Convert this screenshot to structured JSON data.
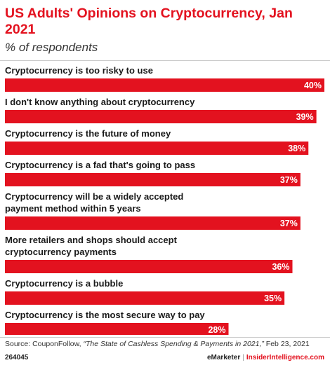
{
  "header": {
    "title": "US Adults' Opinions on Cryptocurrency, Jan 2021",
    "subtitle": "% of respondents"
  },
  "chart_data": {
    "type": "bar",
    "orientation": "horizontal",
    "categories": [
      [
        "Cryptocurrency is too risky to use"
      ],
      [
        "I don't know anything about cryptocurrency"
      ],
      [
        "Cryptocurrency is the future of money"
      ],
      [
        "Cryptocurrency is a fad that's going to pass"
      ],
      [
        "Cryptocurrency will be a widely accepted",
        "payment method within 5 years"
      ],
      [
        "More retailers and shops should accept",
        "cryptocurrency payments"
      ],
      [
        "Cryptocurrency is a bubble"
      ],
      [
        "Cryptocurrency is the most secure way to pay"
      ]
    ],
    "values": [
      40,
      39,
      38,
      37,
      37,
      36,
      35,
      28
    ],
    "value_labels": [
      "40%",
      "39%",
      "38%",
      "37%",
      "37%",
      "36%",
      "35%",
      "28%"
    ],
    "xlim": [
      0,
      40
    ],
    "bar_color": "#e3121f",
    "grid": false,
    "legend": "none"
  },
  "footer": {
    "source_lead": "Source: CouponFollow, ",
    "source_italic": "“The State of Cashless Spending & Payments in 2021,”",
    "source_tail": " Feb 23, 2021",
    "chart_id": "264045",
    "brand_a": "eMarketer",
    "brand_sep": "|",
    "brand_b": "InsiderIntelligence.com"
  }
}
